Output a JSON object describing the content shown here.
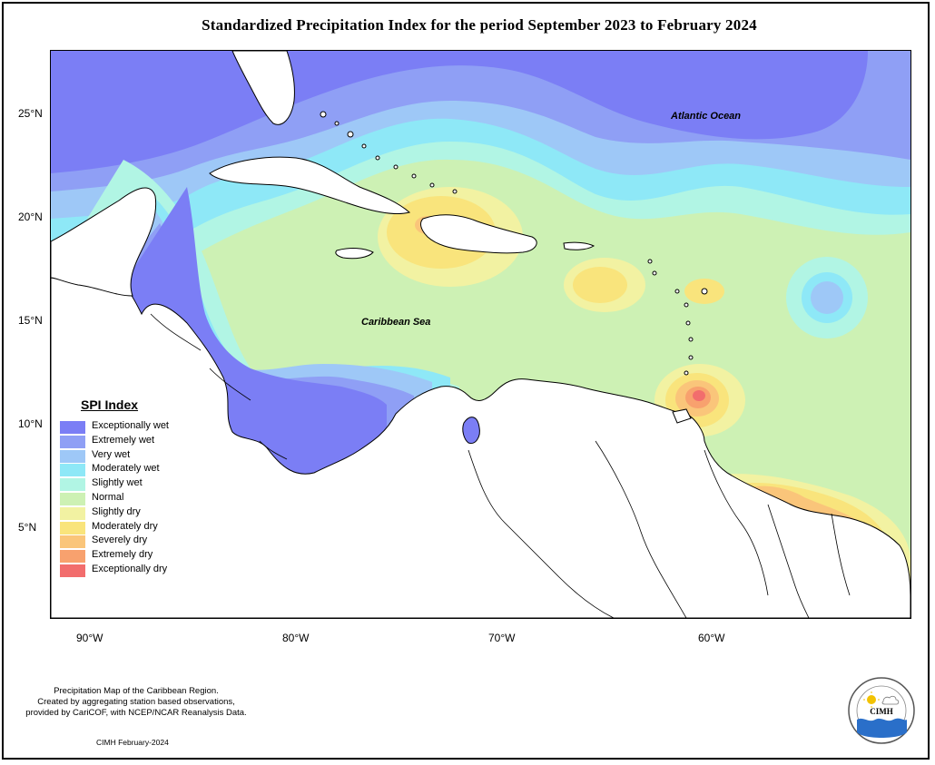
{
  "title": "Standardized Precipitation Index for the period September 2023 to February 2024",
  "map": {
    "ocean_labels": {
      "atlantic": "Atlantic Ocean",
      "caribbean": "Caribbean Sea"
    },
    "y_ticks": [
      "25°N",
      "20°N",
      "15°N",
      "10°N",
      "5°N"
    ],
    "x_ticks": [
      "90°W",
      "80°W",
      "70°W",
      "60°W"
    ]
  },
  "legend": {
    "title": "SPI Index",
    "items": [
      {
        "label": "Exceptionally wet",
        "color": "#7b7ef5"
      },
      {
        "label": "Extremely wet",
        "color": "#8f9ff5"
      },
      {
        "label": "Very wet",
        "color": "#9ec8f7"
      },
      {
        "label": "Moderately wet",
        "color": "#8ee8f7"
      },
      {
        "label": "Slightly wet",
        "color": "#b1f5e4"
      },
      {
        "label": "Normal",
        "color": "#cdf1b4"
      },
      {
        "label": "Slightly dry",
        "color": "#f2f2a2"
      },
      {
        "label": "Moderately dry",
        "color": "#f9e47c"
      },
      {
        "label": "Severely dry",
        "color": "#fac57a"
      },
      {
        "label": "Extremely dry",
        "color": "#f8a16e"
      },
      {
        "label": "Exceptionally dry",
        "color": "#f26d6d"
      }
    ]
  },
  "footnote": {
    "line1": "Precipitation Map of the Caribbean Region.",
    "line2": "Created by aggregating station based observations,",
    "line3": "provided by CariCOF, with NCEP/NCAR Reanalysis Data."
  },
  "credit": "CIMH February-2024",
  "logo": {
    "text": "CIMH",
    "icon": "cimh-logo-icon"
  }
}
